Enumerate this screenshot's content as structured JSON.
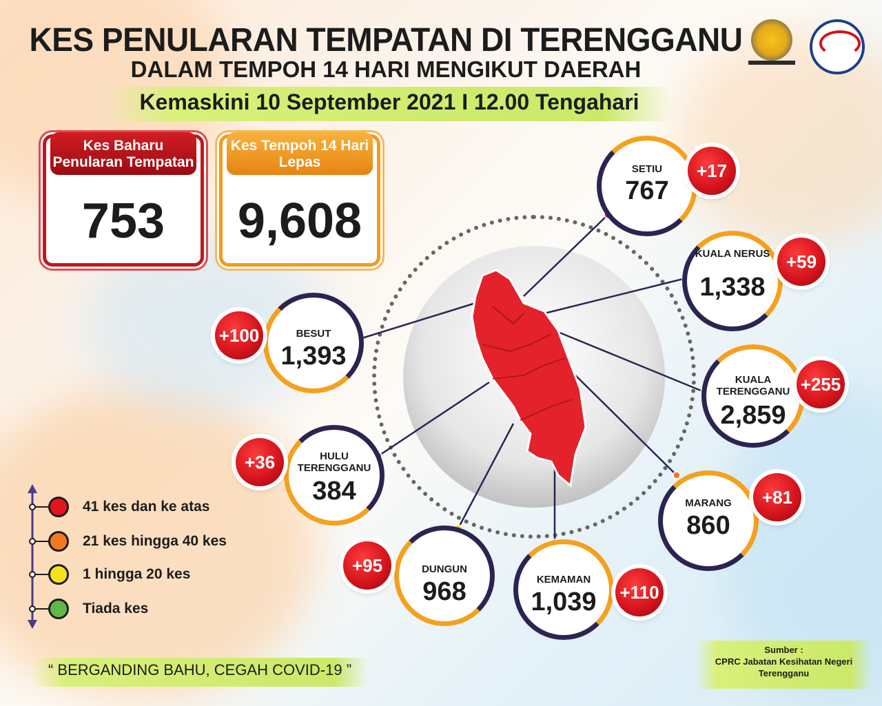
{
  "header": {
    "title": "KES PENULARAN TEMPATAN DI TERENGGANU",
    "subtitle": "DALAM TEMPOH 14 HARI MENGIKUT DAERAH",
    "updated": "Kemaskini 10 September 2021 I 12.00 Tengahari"
  },
  "summary": {
    "new_cases_label": "Kes Baharu Penularan Tempatan",
    "new_cases_value": "753",
    "period_cases_label": "Kes Tempoh 14 Hari Lepas",
    "period_cases_value": "9,608"
  },
  "districts": [
    {
      "name": "SETIU",
      "total": "767",
      "new": "+17",
      "dot_color": "#e8207f"
    },
    {
      "name": "KUALA NERUS",
      "total": "1,338",
      "new": "+59",
      "dot_color": "#1a3a8c"
    },
    {
      "name": "BESUT",
      "total": "1,393",
      "new": "+100",
      "dot_color": "#6cc24a"
    },
    {
      "name": "KUALA TERENGGANU",
      "total": "2,859",
      "new": "+255",
      "dot_color": "#e83fc4"
    },
    {
      "name": "HULU TERENGGANU",
      "total": "384",
      "new": "+36",
      "dot_color": "#2aa8d8"
    },
    {
      "name": "MARANG",
      "total": "860",
      "new": "+81",
      "dot_color": "#f07a1e"
    },
    {
      "name": "DUNGUN",
      "total": "968",
      "new": "+95",
      "dot_color": "#f5d21c"
    },
    {
      "name": "KEMAMAN",
      "total": "1,039",
      "new": "+110",
      "dot_color": "#8a4fd0"
    }
  ],
  "legend": [
    {
      "label": "41 kes dan ke atas",
      "color": "#e3141f"
    },
    {
      "label": "21 kes hingga 40 kes",
      "color": "#f07a1e"
    },
    {
      "label": "1 hingga 20 kes",
      "color": "#f5e21c"
    },
    {
      "label": "Tiada kes",
      "color": "#5fb848"
    }
  ],
  "footer": {
    "slogan": "“ BERGANDING BAHU, CEGAH COVID-19 ”",
    "source_title": "Sumber :",
    "source_body": "CPRC Jabatan Kesihatan Negeri Terengganu"
  },
  "colors": {
    "red_box": "#c4161c",
    "orange_box": "#f39a1e",
    "ring_orange": "#f5a01e",
    "ring_dark": "#2b2452",
    "map_red": "#e3222b"
  }
}
